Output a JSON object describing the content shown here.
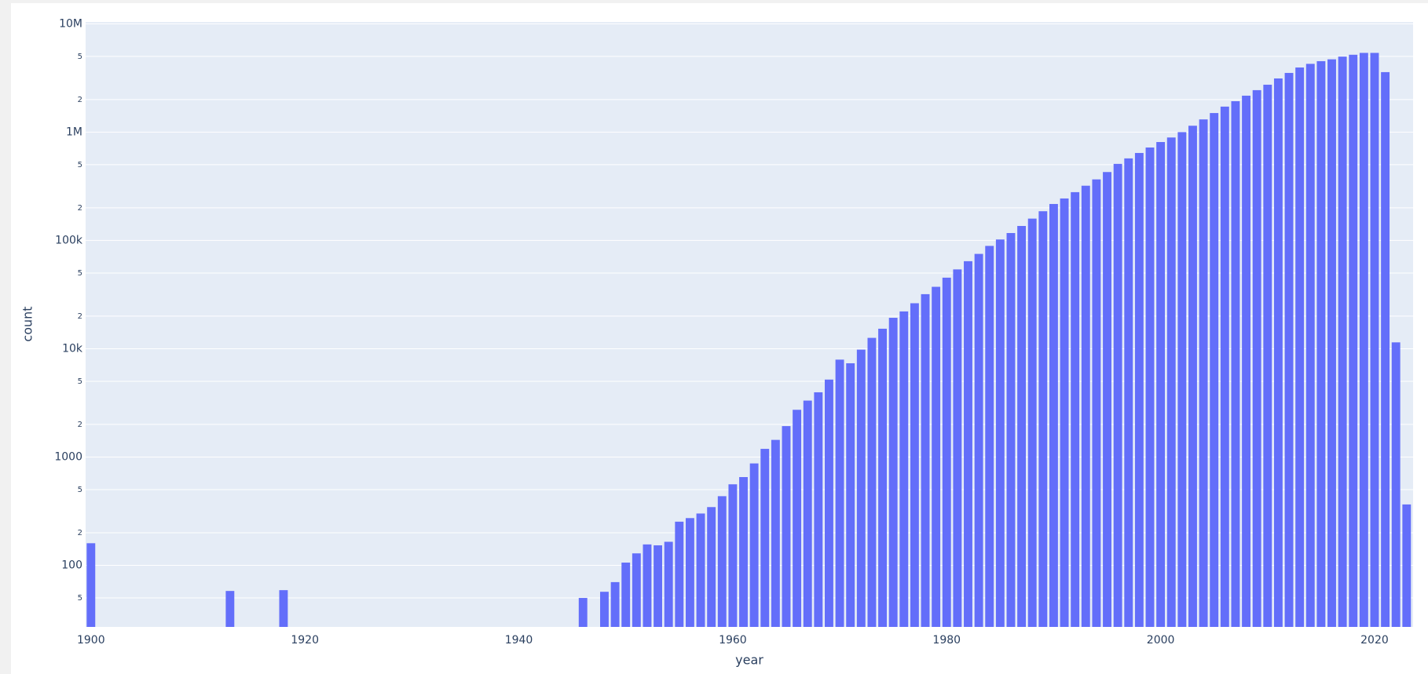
{
  "chart_data": {
    "type": "bar",
    "x_label": "year",
    "y_label": "count",
    "log_y": true,
    "grid": true,
    "color": "#636efa",
    "x": [
      1900,
      1913,
      1918,
      1946,
      1948,
      1949,
      1950,
      1951,
      1952,
      1953,
      1954,
      1955,
      1956,
      1957,
      1958,
      1959,
      1960,
      1961,
      1962,
      1963,
      1964,
      1965,
      1966,
      1967,
      1968,
      1969,
      1970,
      1971,
      1972,
      1973,
      1974,
      1975,
      1976,
      1977,
      1978,
      1979,
      1980,
      1981,
      1982,
      1983,
      1984,
      1985,
      1986,
      1987,
      1988,
      1989,
      1990,
      1991,
      1992,
      1993,
      1994,
      1995,
      1996,
      1997,
      1998,
      1999,
      2000,
      2001,
      2002,
      2003,
      2004,
      2005,
      2006,
      2007,
      2008,
      2009,
      2010,
      2011,
      2012,
      2013,
      2014,
      2015,
      2016,
      2017,
      2018,
      2019,
      2020,
      2021,
      2022,
      2023
    ],
    "values": [
      160,
      58,
      59,
      50,
      57,
      70,
      106,
      129,
      156,
      153,
      165,
      253,
      273,
      301,
      345,
      435,
      560,
      653,
      873,
      1190,
      1440,
      1930,
      2730,
      3320,
      3960,
      5190,
      7930,
      7340,
      9810,
      12600,
      15300,
      19300,
      22100,
      26300,
      31900,
      37300,
      45300,
      54000,
      64300,
      75100,
      89000,
      102000,
      117000,
      136000,
      159000,
      186000,
      217000,
      244000,
      279000,
      320000,
      366000,
      428000,
      509000,
      572000,
      642000,
      721000,
      810000,
      892000,
      1000000,
      1145000,
      1310000,
      1500000,
      1720000,
      1930000,
      2170000,
      2440000,
      2740000,
      3130000,
      3520000,
      3950000,
      4270000,
      4520000,
      4700000,
      4980000,
      5180000,
      5390000,
      5390000,
      3580000,
      11450,
      365
    ],
    "xlim": [
      1899.5,
      2023.6
    ],
    "xticks": [
      1900,
      1920,
      1940,
      1960,
      1980,
      2000,
      2020
    ],
    "ylim": [
      27,
      10400000
    ],
    "yticks": [
      {
        "value": 10000000,
        "label": "10M"
      },
      {
        "value": 5000000,
        "label": "5"
      },
      {
        "value": 2000000,
        "label": "2"
      },
      {
        "value": 1000000,
        "label": "1M"
      },
      {
        "value": 500000,
        "label": "5"
      },
      {
        "value": 200000,
        "label": "2"
      },
      {
        "value": 100000,
        "label": "100k"
      },
      {
        "value": 50000,
        "label": "5"
      },
      {
        "value": 20000,
        "label": "2"
      },
      {
        "value": 10000,
        "label": "10k"
      },
      {
        "value": 5000,
        "label": "5"
      },
      {
        "value": 2000,
        "label": "2"
      },
      1000,
      {
        "value": 500,
        "label": "5"
      },
      {
        "value": 200,
        "label": "2"
      },
      100,
      {
        "value": 50,
        "label": "5"
      }
    ]
  }
}
